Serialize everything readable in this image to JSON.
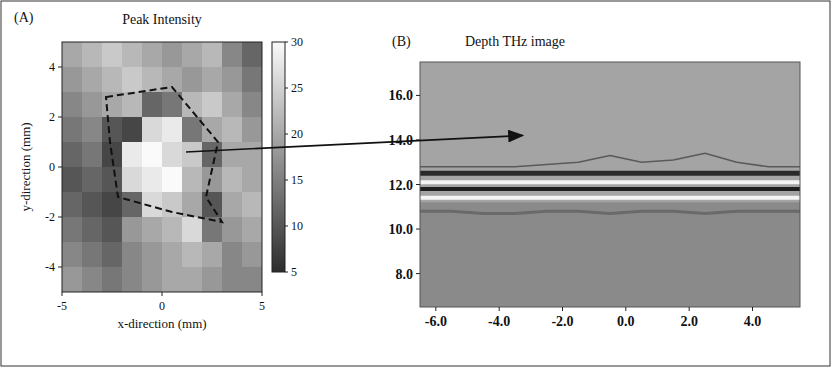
{
  "chart_data": [
    {
      "type": "heatmap",
      "annotations": [
        "(A)"
      ],
      "title": "Peak Intensity",
      "x_label": "x-direction (mm)",
      "y_label": "y-direction (mm)",
      "x": [
        -4.5,
        -3.5,
        -2.5,
        -1.5,
        -0.5,
        0.5,
        1.5,
        2.5,
        3.5,
        4.5
      ],
      "y": [
        4.5,
        3.5,
        2.5,
        1.5,
        0.5,
        -0.5,
        -1.5,
        -2.5,
        -3.5,
        -4.5
      ],
      "values": [
        [
          20,
          22,
          24,
          22,
          20,
          18,
          20,
          22,
          16,
          12
        ],
        [
          18,
          20,
          22,
          24,
          22,
          20,
          18,
          20,
          18,
          14
        ],
        [
          16,
          18,
          20,
          22,
          12,
          14,
          22,
          24,
          20,
          16
        ],
        [
          14,
          16,
          10,
          8,
          26,
          28,
          14,
          20,
          22,
          18
        ],
        [
          12,
          14,
          8,
          28,
          30,
          26,
          24,
          12,
          20,
          20
        ],
        [
          10,
          12,
          10,
          26,
          28,
          30,
          22,
          18,
          22,
          20
        ],
        [
          12,
          10,
          8,
          12,
          26,
          24,
          20,
          10,
          20,
          22
        ],
        [
          14,
          12,
          10,
          18,
          20,
          22,
          26,
          14,
          18,
          20
        ],
        [
          16,
          14,
          12,
          16,
          18,
          20,
          22,
          20,
          16,
          18
        ],
        [
          18,
          16,
          14,
          16,
          18,
          20,
          20,
          18,
          16,
          16
        ]
      ],
      "xlim": [
        -5,
        5
      ],
      "ylim": [
        -5,
        5
      ],
      "xticks": [
        -5,
        0,
        5
      ],
      "yticks": [
        -4,
        -2,
        0,
        2,
        4
      ],
      "colorbar": {
        "range": [
          5,
          30
        ],
        "ticks": [
          5,
          10,
          15,
          20,
          25,
          30
        ]
      }
    },
    {
      "type": "line",
      "annotations": [
        "(B)"
      ],
      "title": "Depth THz image",
      "x": [
        -6.5,
        -5.5,
        -4.5,
        -3.5,
        -2.5,
        -1.5,
        -0.5,
        0.5,
        1.5,
        2.5,
        3.5,
        4.5,
        5.5
      ],
      "series": [
        {
          "color": "#5a5a5a",
          "values": [
            12.8,
            12.8,
            12.8,
            12.8,
            12.9,
            13.0,
            13.3,
            13.0,
            13.1,
            13.4,
            13.0,
            12.8,
            12.8
          ]
        },
        {
          "color": "#2a2a2a",
          "values": [
            12.5,
            12.5,
            12.5,
            12.5,
            12.5,
            12.5,
            12.5,
            12.5,
            12.5,
            12.5,
            12.5,
            12.5,
            12.5
          ]
        },
        {
          "color": "#f4f4f4",
          "values": [
            12.1,
            12.1,
            12.1,
            12.1,
            12.1,
            12.1,
            12.1,
            12.1,
            12.1,
            12.1,
            12.1,
            12.1,
            12.1
          ]
        },
        {
          "color": "#1e1e1e",
          "values": [
            11.8,
            11.8,
            11.8,
            11.8,
            11.8,
            11.8,
            11.8,
            11.8,
            11.8,
            11.8,
            11.8,
            11.8,
            11.8
          ]
        },
        {
          "color": "#f4f4f4",
          "values": [
            11.4,
            11.4,
            11.4,
            11.4,
            11.4,
            11.4,
            11.4,
            11.4,
            11.4,
            11.4,
            11.4,
            11.4,
            11.4
          ]
        },
        {
          "color": "#6a6a6a",
          "values": [
            10.8,
            10.8,
            10.7,
            10.7,
            10.8,
            10.8,
            10.7,
            10.8,
            10.8,
            10.7,
            10.8,
            10.8,
            10.8
          ]
        }
      ],
      "xlim": [
        -6.5,
        5.5
      ],
      "ylim": [
        6.5,
        17.5
      ],
      "xticks": [
        {
          "value": -6,
          "label": "-6.0"
        },
        {
          "value": -4,
          "label": "-4.0"
        },
        {
          "value": -2,
          "label": "-2.0"
        },
        {
          "value": 0,
          "label": "0.0"
        },
        {
          "value": 2,
          "label": "2.0"
        },
        {
          "value": 4,
          "label": "4.0"
        }
      ],
      "yticks": [
        {
          "value": 8,
          "label": "8.0"
        },
        {
          "value": 10,
          "label": "10.0"
        },
        {
          "value": 12,
          "label": "12.0"
        },
        {
          "value": 14,
          "label": "14.0"
        },
        {
          "value": 16,
          "label": "16.0"
        }
      ]
    }
  ]
}
